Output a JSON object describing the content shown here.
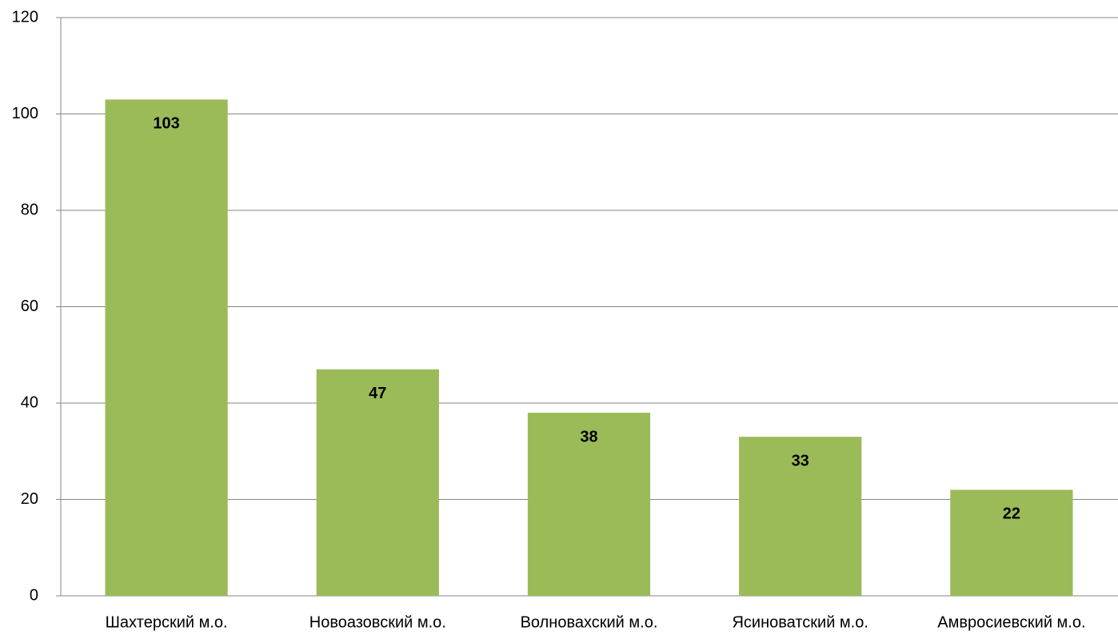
{
  "chart_data": {
    "type": "bar",
    "categories": [
      "Шахтерский м.о.",
      "Новоазовский м.о.",
      "Волновахский м.о.",
      "Ясиноватский м.о.",
      "Амвросиевский м.о."
    ],
    "values": [
      103,
      47,
      38,
      33,
      22
    ],
    "color": "#9bbb59",
    "ylim": [
      0,
      120
    ],
    "yticks": [
      0,
      20,
      40,
      60,
      80,
      100,
      120
    ],
    "grid": true
  }
}
